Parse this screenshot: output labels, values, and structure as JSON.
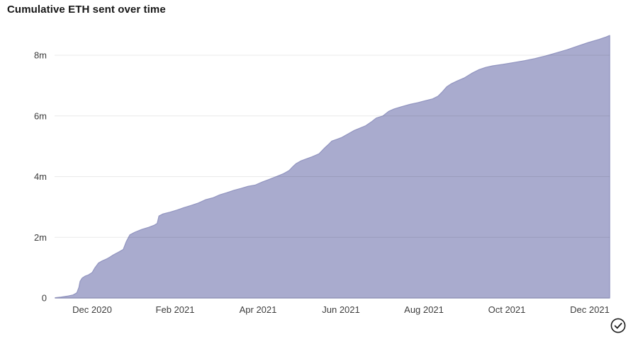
{
  "header": {
    "title": "Cumulative ETH sent over time"
  },
  "status": {
    "icon": "circle-check-icon"
  },
  "chart_data": {
    "type": "area",
    "title": "Cumulative ETH sent over time",
    "xlabel": "",
    "ylabel": "",
    "x_unit": "months since Nov 1 2020",
    "x_range": [
      0.11,
      13.48
    ],
    "y_range": [
      0,
      8.8
    ],
    "grid": "horizontal",
    "legend": "none",
    "x_ticks": [
      {
        "m": 1,
        "label": "Dec 2020"
      },
      {
        "m": 3,
        "label": "Feb 2021"
      },
      {
        "m": 5,
        "label": "Apr 2021"
      },
      {
        "m": 7,
        "label": "Jun 2021"
      },
      {
        "m": 9,
        "label": "Aug 2021"
      },
      {
        "m": 11,
        "label": "Oct 2021"
      },
      {
        "m": 13,
        "label": "Dec 2021"
      }
    ],
    "y_ticks": [
      {
        "v": 0,
        "label": "0"
      },
      {
        "v": 2,
        "label": "2m"
      },
      {
        "v": 4,
        "label": "4m"
      },
      {
        "v": 6,
        "label": "6m"
      },
      {
        "v": 8,
        "label": "8m"
      }
    ],
    "series": [
      {
        "name": "Cumulative ETH sent (millions)",
        "points": [
          [
            0.11,
            0.01
          ],
          [
            0.25,
            0.03
          ],
          [
            0.4,
            0.06
          ],
          [
            0.54,
            0.1
          ],
          [
            0.63,
            0.17
          ],
          [
            0.68,
            0.35
          ],
          [
            0.71,
            0.55
          ],
          [
            0.76,
            0.66
          ],
          [
            0.83,
            0.72
          ],
          [
            0.91,
            0.76
          ],
          [
            1.0,
            0.84
          ],
          [
            1.07,
            1.0
          ],
          [
            1.15,
            1.15
          ],
          [
            1.24,
            1.22
          ],
          [
            1.34,
            1.28
          ],
          [
            1.43,
            1.35
          ],
          [
            1.51,
            1.42
          ],
          [
            1.65,
            1.52
          ],
          [
            1.75,
            1.6
          ],
          [
            1.82,
            1.85
          ],
          [
            1.91,
            2.08
          ],
          [
            2.03,
            2.17
          ],
          [
            2.2,
            2.26
          ],
          [
            2.37,
            2.33
          ],
          [
            2.5,
            2.4
          ],
          [
            2.57,
            2.46
          ],
          [
            2.61,
            2.7
          ],
          [
            2.71,
            2.77
          ],
          [
            2.88,
            2.83
          ],
          [
            3.05,
            2.9
          ],
          [
            3.22,
            2.98
          ],
          [
            3.39,
            3.05
          ],
          [
            3.56,
            3.13
          ],
          [
            3.74,
            3.24
          ],
          [
            3.91,
            3.3
          ],
          [
            4.08,
            3.4
          ],
          [
            4.25,
            3.47
          ],
          [
            4.42,
            3.55
          ],
          [
            4.59,
            3.61
          ],
          [
            4.76,
            3.68
          ],
          [
            4.93,
            3.72
          ],
          [
            5.1,
            3.82
          ],
          [
            5.27,
            3.91
          ],
          [
            5.44,
            4.0
          ],
          [
            5.62,
            4.1
          ],
          [
            5.75,
            4.2
          ],
          [
            5.84,
            4.33
          ],
          [
            5.92,
            4.43
          ],
          [
            6.04,
            4.52
          ],
          [
            6.16,
            4.58
          ],
          [
            6.3,
            4.65
          ],
          [
            6.47,
            4.75
          ],
          [
            6.61,
            4.95
          ],
          [
            6.69,
            5.05
          ],
          [
            6.78,
            5.17
          ],
          [
            6.9,
            5.23
          ],
          [
            7.02,
            5.29
          ],
          [
            7.15,
            5.39
          ],
          [
            7.32,
            5.52
          ],
          [
            7.46,
            5.6
          ],
          [
            7.6,
            5.68
          ],
          [
            7.73,
            5.8
          ],
          [
            7.85,
            5.93
          ],
          [
            8.01,
            6.0
          ],
          [
            8.15,
            6.15
          ],
          [
            8.28,
            6.23
          ],
          [
            8.45,
            6.3
          ],
          [
            8.66,
            6.38
          ],
          [
            8.86,
            6.44
          ],
          [
            9.03,
            6.5
          ],
          [
            9.21,
            6.56
          ],
          [
            9.34,
            6.65
          ],
          [
            9.45,
            6.8
          ],
          [
            9.55,
            6.96
          ],
          [
            9.65,
            7.05
          ],
          [
            9.8,
            7.15
          ],
          [
            9.97,
            7.25
          ],
          [
            10.15,
            7.4
          ],
          [
            10.32,
            7.52
          ],
          [
            10.49,
            7.6
          ],
          [
            10.66,
            7.65
          ],
          [
            10.91,
            7.7
          ],
          [
            11.17,
            7.76
          ],
          [
            11.43,
            7.82
          ],
          [
            11.68,
            7.89
          ],
          [
            11.94,
            7.98
          ],
          [
            12.2,
            8.08
          ],
          [
            12.45,
            8.18
          ],
          [
            12.71,
            8.3
          ],
          [
            12.97,
            8.42
          ],
          [
            13.22,
            8.52
          ],
          [
            13.39,
            8.6
          ],
          [
            13.48,
            8.65
          ]
        ]
      }
    ],
    "colors": {
      "area_fill": "#a9abce",
      "area_line": "#9295c0",
      "grid": "rgba(0,0,0,0.085)",
      "tick_text": "#3d3d3d",
      "title_text": "#161616"
    }
  }
}
